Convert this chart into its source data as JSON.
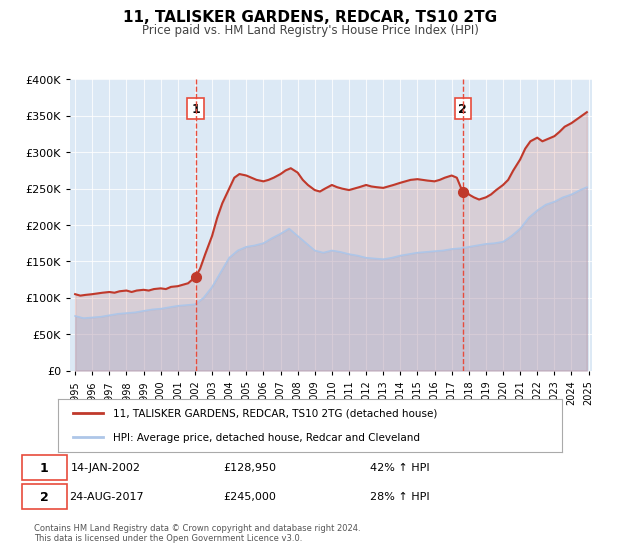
{
  "title": "11, TALISKER GARDENS, REDCAR, TS10 2TG",
  "subtitle": "Price paid vs. HM Land Registry's House Price Index (HPI)",
  "legend_line1": "11, TALISKER GARDENS, REDCAR, TS10 2TG (detached house)",
  "legend_line2": "HPI: Average price, detached house, Redcar and Cleveland",
  "transaction1_label": "1",
  "transaction1_date": "14-JAN-2002",
  "transaction1_price": "£128,950",
  "transaction1_hpi": "42% ↑ HPI",
  "transaction2_label": "2",
  "transaction2_date": "24-AUG-2017",
  "transaction2_price": "£245,000",
  "transaction2_hpi": "28% ↑ HPI",
  "footer1": "Contains HM Land Registry data © Crown copyright and database right 2024.",
  "footer2": "This data is licensed under the Open Government Licence v3.0.",
  "hpi_color": "#aec6e8",
  "price_color": "#c0392b",
  "vline_color": "#e74c3c",
  "marker_color": "#c0392b",
  "background_color": "#dce9f5",
  "plot_bg_color": "#dce9f5",
  "ylim": [
    0,
    400000
  ],
  "yticks": [
    0,
    50000,
    100000,
    150000,
    200000,
    250000,
    300000,
    350000,
    400000
  ],
  "xstart": 1995,
  "xend": 2025,
  "transaction1_year": 2002.04,
  "transaction2_year": 2017.65,
  "hpi_data": [
    [
      1995.0,
      75000
    ],
    [
      1995.5,
      72000
    ],
    [
      1996.0,
      73000
    ],
    [
      1996.5,
      74000
    ],
    [
      1997.0,
      76000
    ],
    [
      1997.5,
      78000
    ],
    [
      1998.0,
      79000
    ],
    [
      1998.5,
      80000
    ],
    [
      1999.0,
      82000
    ],
    [
      1999.5,
      84000
    ],
    [
      2000.0,
      85000
    ],
    [
      2000.5,
      87000
    ],
    [
      2001.0,
      89000
    ],
    [
      2001.5,
      90000
    ],
    [
      2002.0,
      91000
    ],
    [
      2002.5,
      100000
    ],
    [
      2003.0,
      115000
    ],
    [
      2003.5,
      135000
    ],
    [
      2004.0,
      155000
    ],
    [
      2004.5,
      165000
    ],
    [
      2005.0,
      170000
    ],
    [
      2005.5,
      172000
    ],
    [
      2006.0,
      175000
    ],
    [
      2006.5,
      182000
    ],
    [
      2007.0,
      188000
    ],
    [
      2007.5,
      195000
    ],
    [
      2008.0,
      185000
    ],
    [
      2008.5,
      175000
    ],
    [
      2009.0,
      165000
    ],
    [
      2009.5,
      162000
    ],
    [
      2010.0,
      165000
    ],
    [
      2010.5,
      163000
    ],
    [
      2011.0,
      160000
    ],
    [
      2011.5,
      158000
    ],
    [
      2012.0,
      155000
    ],
    [
      2012.5,
      154000
    ],
    [
      2013.0,
      153000
    ],
    [
      2013.5,
      155000
    ],
    [
      2014.0,
      158000
    ],
    [
      2014.5,
      160000
    ],
    [
      2015.0,
      162000
    ],
    [
      2015.5,
      163000
    ],
    [
      2016.0,
      164000
    ],
    [
      2016.5,
      165000
    ],
    [
      2017.0,
      167000
    ],
    [
      2017.5,
      168000
    ],
    [
      2018.0,
      170000
    ],
    [
      2018.5,
      172000
    ],
    [
      2019.0,
      174000
    ],
    [
      2019.5,
      175000
    ],
    [
      2020.0,
      177000
    ],
    [
      2020.5,
      185000
    ],
    [
      2021.0,
      195000
    ],
    [
      2021.5,
      210000
    ],
    [
      2022.0,
      220000
    ],
    [
      2022.5,
      228000
    ],
    [
      2023.0,
      232000
    ],
    [
      2023.5,
      238000
    ],
    [
      2024.0,
      242000
    ],
    [
      2024.5,
      248000
    ],
    [
      2024.9,
      252000
    ]
  ],
  "price_data": [
    [
      1995.0,
      105000
    ],
    [
      1995.3,
      103000
    ],
    [
      1995.6,
      104000
    ],
    [
      1996.0,
      105000
    ],
    [
      1996.3,
      106000
    ],
    [
      1996.6,
      107000
    ],
    [
      1997.0,
      108000
    ],
    [
      1997.3,
      107000
    ],
    [
      1997.6,
      109000
    ],
    [
      1998.0,
      110000
    ],
    [
      1998.3,
      108000
    ],
    [
      1998.6,
      110000
    ],
    [
      1999.0,
      111000
    ],
    [
      1999.3,
      110000
    ],
    [
      1999.6,
      112000
    ],
    [
      2000.0,
      113000
    ],
    [
      2000.3,
      112000
    ],
    [
      2000.6,
      115000
    ],
    [
      2001.0,
      116000
    ],
    [
      2001.3,
      118000
    ],
    [
      2001.6,
      120000
    ],
    [
      2002.04,
      128950
    ],
    [
      2002.3,
      140000
    ],
    [
      2002.6,
      160000
    ],
    [
      2003.0,
      185000
    ],
    [
      2003.3,
      210000
    ],
    [
      2003.6,
      230000
    ],
    [
      2004.0,
      250000
    ],
    [
      2004.3,
      265000
    ],
    [
      2004.6,
      270000
    ],
    [
      2005.0,
      268000
    ],
    [
      2005.3,
      265000
    ],
    [
      2005.6,
      262000
    ],
    [
      2006.0,
      260000
    ],
    [
      2006.3,
      262000
    ],
    [
      2006.6,
      265000
    ],
    [
      2007.0,
      270000
    ],
    [
      2007.3,
      275000
    ],
    [
      2007.6,
      278000
    ],
    [
      2008.0,
      272000
    ],
    [
      2008.3,
      262000
    ],
    [
      2008.6,
      255000
    ],
    [
      2009.0,
      248000
    ],
    [
      2009.3,
      246000
    ],
    [
      2009.6,
      250000
    ],
    [
      2010.0,
      255000
    ],
    [
      2010.3,
      252000
    ],
    [
      2010.6,
      250000
    ],
    [
      2011.0,
      248000
    ],
    [
      2011.3,
      250000
    ],
    [
      2011.6,
      252000
    ],
    [
      2012.0,
      255000
    ],
    [
      2012.3,
      253000
    ],
    [
      2012.6,
      252000
    ],
    [
      2013.0,
      251000
    ],
    [
      2013.3,
      253000
    ],
    [
      2013.6,
      255000
    ],
    [
      2014.0,
      258000
    ],
    [
      2014.3,
      260000
    ],
    [
      2014.6,
      262000
    ],
    [
      2015.0,
      263000
    ],
    [
      2015.3,
      262000
    ],
    [
      2015.6,
      261000
    ],
    [
      2016.0,
      260000
    ],
    [
      2016.3,
      262000
    ],
    [
      2016.6,
      265000
    ],
    [
      2017.0,
      268000
    ],
    [
      2017.3,
      265000
    ],
    [
      2017.65,
      245000
    ],
    [
      2017.9,
      248000
    ],
    [
      2018.0,
      242000
    ],
    [
      2018.3,
      238000
    ],
    [
      2018.6,
      235000
    ],
    [
      2019.0,
      238000
    ],
    [
      2019.3,
      242000
    ],
    [
      2019.6,
      248000
    ],
    [
      2020.0,
      255000
    ],
    [
      2020.3,
      262000
    ],
    [
      2020.6,
      275000
    ],
    [
      2021.0,
      290000
    ],
    [
      2021.3,
      305000
    ],
    [
      2021.6,
      315000
    ],
    [
      2022.0,
      320000
    ],
    [
      2022.3,
      315000
    ],
    [
      2022.6,
      318000
    ],
    [
      2023.0,
      322000
    ],
    [
      2023.3,
      328000
    ],
    [
      2023.6,
      335000
    ],
    [
      2024.0,
      340000
    ],
    [
      2024.3,
      345000
    ],
    [
      2024.6,
      350000
    ],
    [
      2024.9,
      355000
    ]
  ]
}
